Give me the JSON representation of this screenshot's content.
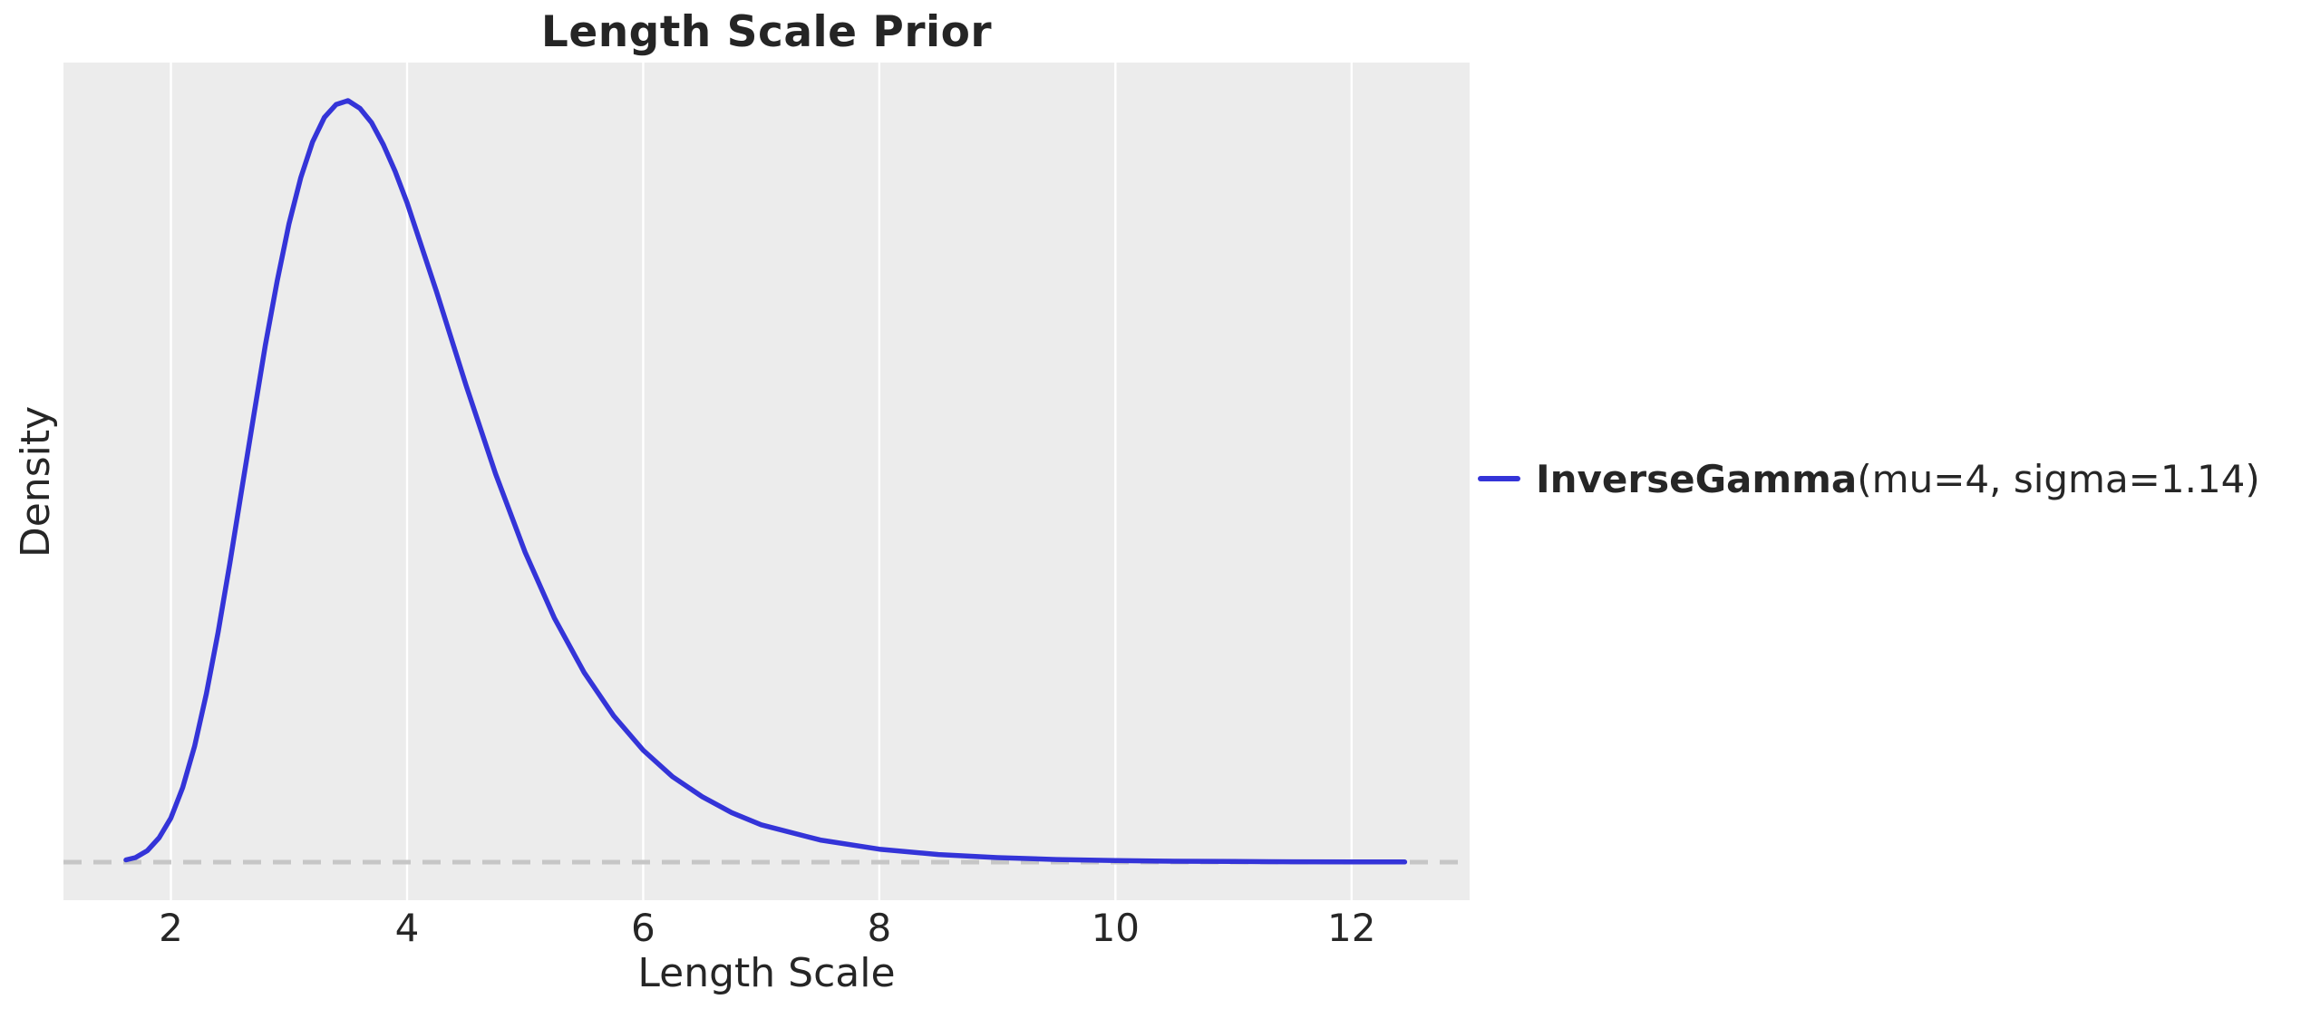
{
  "figure": {
    "title": "Length Scale Prior",
    "xlabel": "Length Scale",
    "ylabel": "Density",
    "legend": {
      "label_bold": "InverseGamma",
      "label_rest": "(mu=4, sigma=1.14)"
    }
  },
  "colors": {
    "plot_background": "#ececec",
    "gridline": "#ffffff",
    "text": "#262626",
    "curve": "#3434d8",
    "zero_line": "#c6c6c6"
  },
  "chart_data": {
    "type": "line",
    "title": "Length Scale Prior",
    "xlabel": "Length Scale",
    "ylabel": "Density",
    "xlim": [
      1.09,
      13.0
    ],
    "ylim": [
      -0.05,
      1.05
    ],
    "x_ticks": [
      2,
      4,
      6,
      8,
      10,
      12
    ],
    "y_ticks": [],
    "grid": "vertical-only",
    "legend_position": "outside-right-center",
    "reference_lines": [
      {
        "kind": "horizontal-dashed",
        "y": 0
      }
    ],
    "series": [
      {
        "name": "InverseGamma(mu=4, sigma=1.14)",
        "distribution": "InverseGamma",
        "params": {
          "mu": 4,
          "sigma": 1.14
        },
        "y_units": "density-normalized-to-peak-1",
        "x": [
          1.62,
          1.7,
          1.8,
          1.9,
          2.0,
          2.1,
          2.2,
          2.3,
          2.4,
          2.5,
          2.6,
          2.7,
          2.8,
          2.9,
          3.0,
          3.1,
          3.2,
          3.3,
          3.4,
          3.5,
          3.6,
          3.7,
          3.8,
          3.9,
          4.0,
          4.25,
          4.5,
          4.75,
          5.0,
          5.25,
          5.5,
          5.75,
          6.0,
          6.25,
          6.5,
          6.75,
          7.0,
          7.5,
          8.0,
          8.5,
          9.0,
          9.5,
          10.0,
          10.5,
          11.0,
          11.5,
          12.0,
          12.45
        ],
        "y": [
          0.003,
          0.006,
          0.015,
          0.032,
          0.058,
          0.098,
          0.152,
          0.221,
          0.302,
          0.393,
          0.489,
          0.585,
          0.679,
          0.763,
          0.838,
          0.899,
          0.946,
          0.978,
          0.995,
          1.0,
          0.99,
          0.971,
          0.942,
          0.907,
          0.866,
          0.749,
          0.626,
          0.51,
          0.407,
          0.32,
          0.249,
          0.192,
          0.147,
          0.112,
          0.086,
          0.065,
          0.049,
          0.029,
          0.017,
          0.01,
          0.006,
          0.0034,
          0.0021,
          0.0012,
          0.0008,
          0.0005,
          0.0003,
          0.0002
        ]
      }
    ]
  }
}
